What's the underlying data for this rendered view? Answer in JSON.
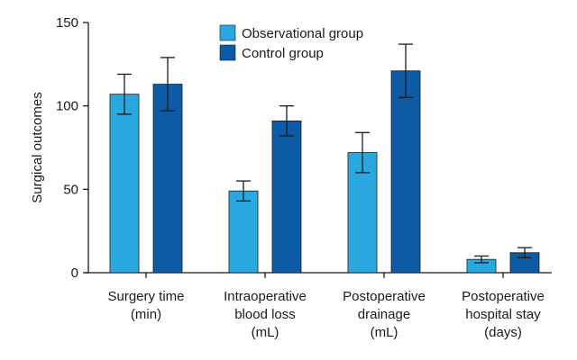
{
  "chart_data": {
    "type": "bar",
    "title": "",
    "xlabel": "",
    "ylabel": "Surgical outcomes",
    "ylim": [
      0,
      150
    ],
    "yticks": [
      0,
      50,
      100,
      150
    ],
    "grid": false,
    "legend_position": "top-center",
    "categories": [
      [
        "Surgery time",
        "(min)"
      ],
      [
        "Intraoperative",
        "blood loss",
        "(mL)"
      ],
      [
        "Postoperative",
        "drainage",
        "(mL)"
      ],
      [
        "Postoperative",
        "hospital stay",
        "(days)"
      ]
    ],
    "series": [
      {
        "name": "Observational group",
        "color": "#29a8e0",
        "values": [
          107,
          49,
          72,
          8
        ],
        "errors": [
          12,
          6,
          12,
          2
        ]
      },
      {
        "name": "Control group",
        "color": "#0d5aa7",
        "values": [
          113,
          91,
          121,
          12
        ],
        "errors": [
          16,
          9,
          16,
          3
        ]
      }
    ]
  }
}
